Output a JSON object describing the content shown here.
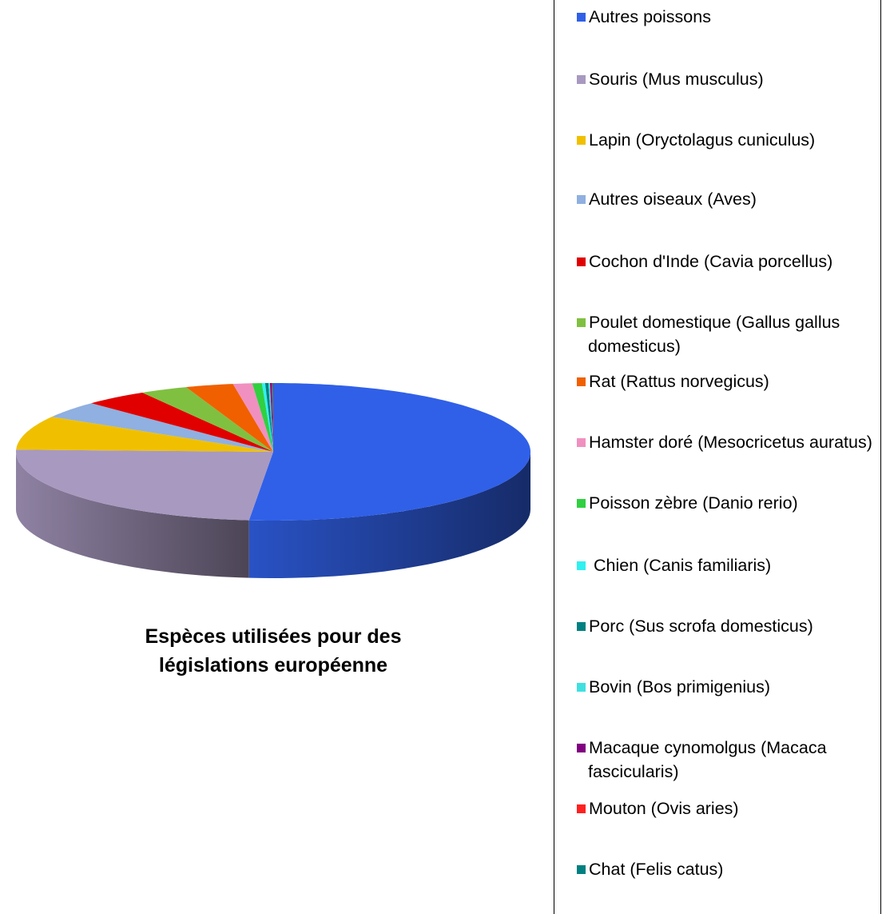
{
  "chart_data": {
    "type": "pie3d",
    "title": "Espèces utilisées pour des législations européenne",
    "categories": [
      "Autres poissons",
      "Souris (Mus musculus)",
      "Lapin (Oryctolagus cuniculus)",
      "Autres oiseaux (Aves)",
      "Cochon d'Inde (Cavia porcellus)",
      "Poulet domestique (Gallus gallus domesticus)",
      "Rat (Rattus norvegicus)",
      "Hamster doré (Mesocricetus auratus)",
      "Poisson zèbre (Danio rerio)",
      " Chien (Canis familiaris)",
      "Porc (Sus scrofa domesticus)",
      "Bovin (Bos primigenius)",
      "Macaque cynomolgus (Macaca fascicularis)",
      "Mouton (Ovis aries)",
      "Chat (Felis catus)"
    ],
    "values": [
      51.5,
      24,
      8,
      4,
      4,
      3,
      3,
      1.2,
      0.6,
      0.2,
      0.2,
      0.1,
      0.1,
      0.05,
      0.05
    ],
    "colors": [
      "#3060e8",
      "#a899c0",
      "#f0c000",
      "#8fb0e0",
      "#e00000",
      "#80c040",
      "#f06000",
      "#f090c0",
      "#30d040",
      "#30f0f0",
      "#008080",
      "#40e0e0",
      "#800080",
      "#ff2020",
      "#008080"
    ],
    "legend": "right"
  }
}
